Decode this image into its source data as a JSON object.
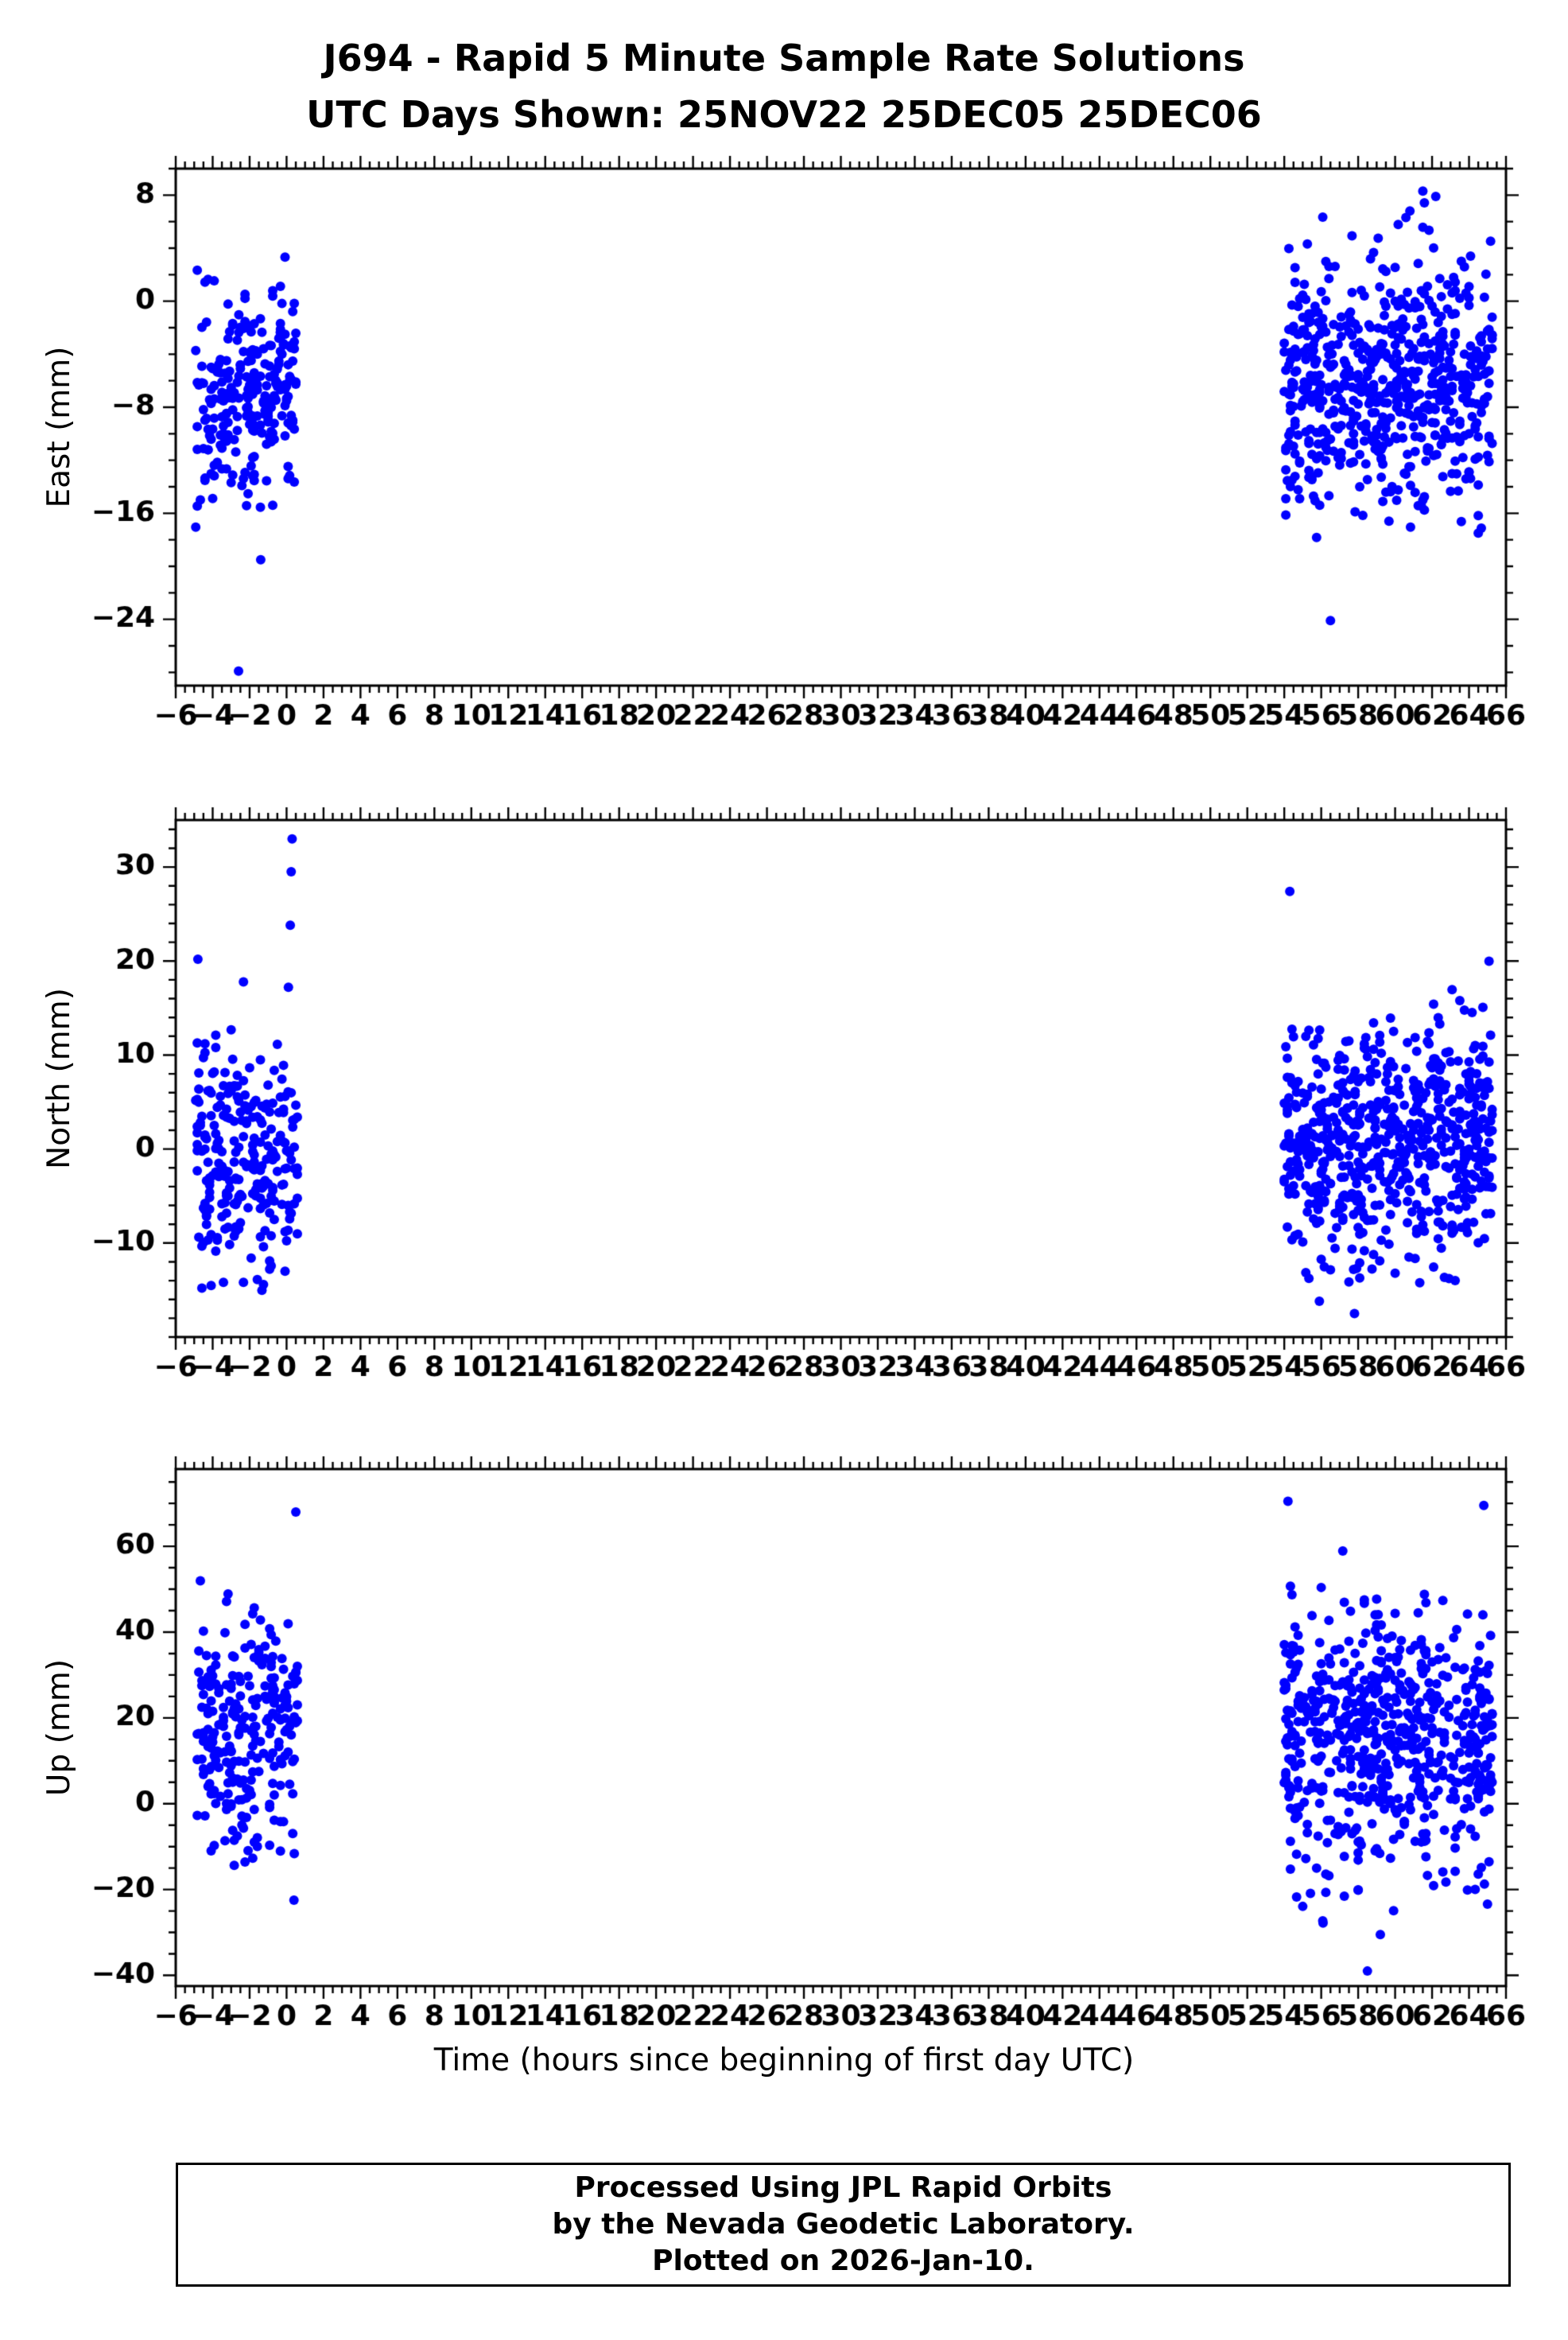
{
  "title": {
    "line1": "J694 - Rapid 5 Minute Sample Rate Solutions",
    "line2": "UTC Days Shown:  25NOV22 25DEC05 25DEC06"
  },
  "x_axis_title": "Time (hours since beginning of first day UTC)",
  "footer": {
    "line1": "Processed Using JPL Rapid Orbits",
    "line2": "by the Nevada Geodetic Laboratory.",
    "line3": "Plotted on 2026-Jan-10."
  },
  "point_color": "#0000ff",
  "axis_color": "#000000",
  "chart_data": [
    {
      "type": "scatter",
      "ylabel": "East (mm)",
      "xlim": [
        -6,
        66
      ],
      "ylim": [
        -29,
        10
      ],
      "yticks_major": [
        8,
        0,
        -8,
        -16,
        -24
      ],
      "ytick_minor_step": 2,
      "xtick_label_step": 2,
      "xtick_minor_step": 0.5,
      "grid": false,
      "legend": "none",
      "seed": 7,
      "clusters": [
        {
          "x_range": [
            -4.9,
            0.6
          ],
          "n": 250,
          "y_mean": -7.0,
          "y_sd": 4.0,
          "y_clip": [
            -18.5,
            7.0
          ]
        },
        {
          "x_range": [
            54.0,
            65.3
          ],
          "n": 620,
          "y_mean": -6.0,
          "y_sd": 4.5,
          "y_clip": [
            -20.0,
            8.3
          ]
        }
      ],
      "outliers": [
        [
          -2.6,
          -27.9
        ],
        [
          -1.4,
          -19.5
        ],
        [
          56.5,
          -24.1
        ],
        [
          61.5,
          8.3
        ],
        [
          62.2,
          7.9
        ],
        [
          60.8,
          6.8
        ],
        [
          64.5,
          -17.5
        ]
      ]
    },
    {
      "type": "scatter",
      "ylabel": "North (mm)",
      "xlim": [
        -6,
        66
      ],
      "ylim": [
        -20,
        35
      ],
      "yticks_major": [
        30,
        20,
        10,
        0,
        -10
      ],
      "ytick_minor_step": 2,
      "xtick_label_step": 2,
      "xtick_minor_step": 0.5,
      "grid": false,
      "legend": "none",
      "seed": 11,
      "clusters": [
        {
          "x_range": [
            -4.9,
            0.6
          ],
          "n": 250,
          "y_mean": -1.0,
          "y_sd": 6.0,
          "y_clip": [
            -15.5,
            20.0
          ]
        },
        {
          "x_range": [
            54.0,
            65.3
          ],
          "n": 620,
          "y_mean": 0.5,
          "y_sd": 6.5,
          "y_clip": [
            -14.5,
            21.0
          ]
        }
      ],
      "outliers": [
        [
          0.3,
          33.0
        ],
        [
          0.25,
          29.5
        ],
        [
          0.2,
          23.8
        ],
        [
          -4.8,
          20.2
        ],
        [
          0.1,
          17.2
        ],
        [
          54.3,
          27.4
        ],
        [
          57.8,
          -17.5
        ],
        [
          55.9,
          -16.2
        ],
        [
          63.5,
          15.8
        ]
      ]
    },
    {
      "type": "scatter",
      "ylabel": "Up (mm)",
      "xlim": [
        -6,
        66
      ],
      "ylim": [
        -42.5,
        78
      ],
      "yticks_major": [
        60,
        40,
        20,
        0,
        -20,
        -40
      ],
      "ytick_minor_step": 5,
      "xtick_label_step": 2,
      "xtick_minor_step": 0.5,
      "grid": false,
      "legend": "none",
      "seed": 13,
      "clusters": [
        {
          "x_range": [
            -4.9,
            0.6
          ],
          "n": 250,
          "y_mean": 16.0,
          "y_sd": 14.0,
          "y_clip": [
            -24.0,
            55.0
          ]
        },
        {
          "x_range": [
            54.0,
            65.3
          ],
          "n": 620,
          "y_mean": 15.0,
          "y_sd": 15.0,
          "y_clip": [
            -28.0,
            60.0
          ]
        }
      ],
      "outliers": [
        [
          0.5,
          68.0
        ],
        [
          0.4,
          -22.5
        ],
        [
          54.2,
          70.5
        ],
        [
          64.8,
          69.5
        ],
        [
          58.5,
          -39.0
        ],
        [
          59.2,
          -30.5
        ],
        [
          56.1,
          -27.8
        ]
      ]
    }
  ]
}
